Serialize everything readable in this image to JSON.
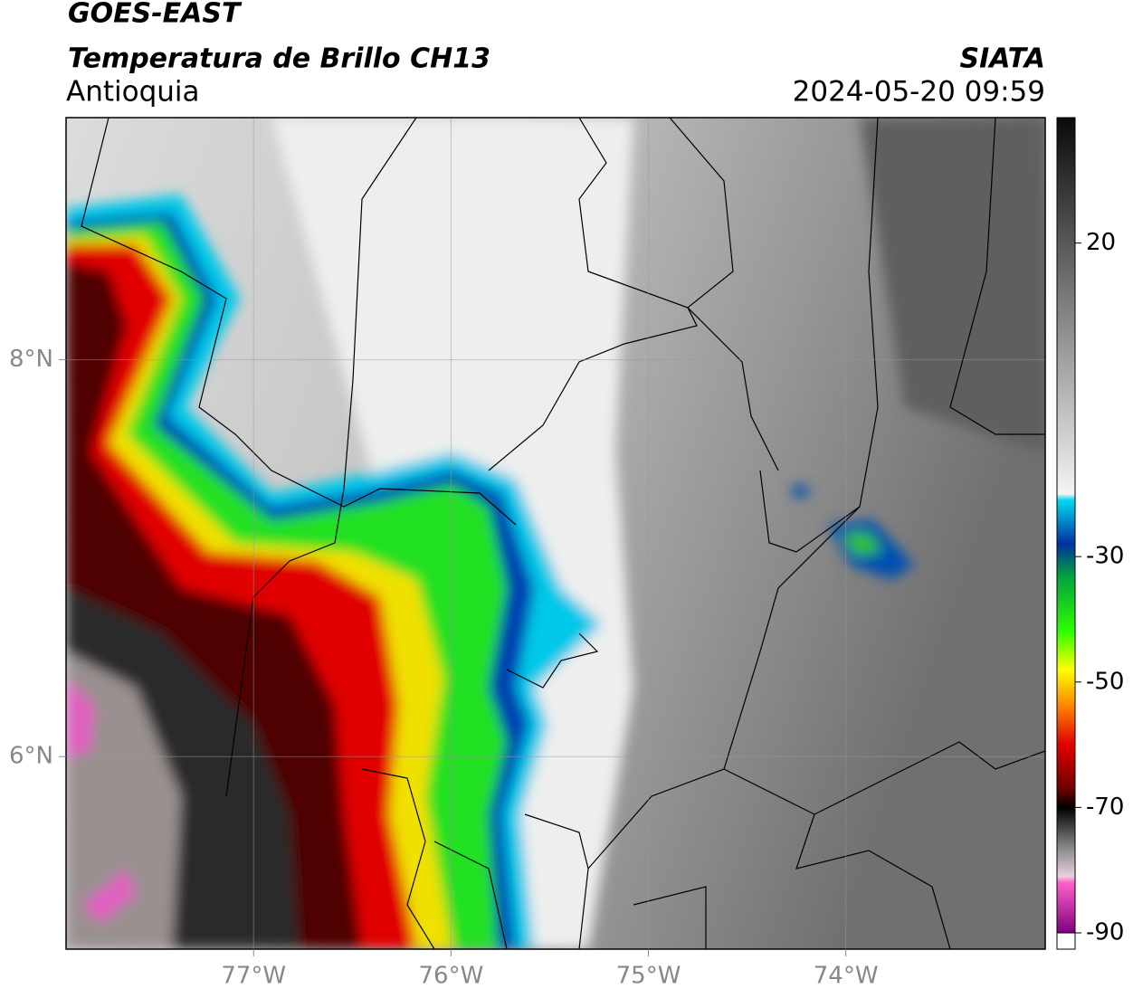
{
  "header": {
    "title": "GOES-EAST",
    "subtitle": "Temperatura de Brillo CH13",
    "region": "Antioquia",
    "source": "SIATA",
    "datetime": "2024-05-20 09:59"
  },
  "map": {
    "xlim": [
      -77.95,
      -72.99
    ],
    "ylim": [
      5.03,
      9.22
    ],
    "xticks": [
      {
        "value": -77,
        "label": "77°W"
      },
      {
        "value": -76,
        "label": "76°W"
      },
      {
        "value": -75,
        "label": "75°W"
      },
      {
        "value": -74,
        "label": "74°W"
      }
    ],
    "yticks": [
      {
        "value": 8,
        "label": "8°N"
      },
      {
        "value": 6,
        "label": "6°N"
      }
    ],
    "grid": true
  },
  "colorbar": {
    "lim": [
      -90,
      40
    ],
    "ticks": [
      20,
      -30,
      -50,
      -70,
      -90
    ],
    "colormap": [
      [
        40,
        "#0a0a0a"
      ],
      [
        -20,
        "#f4f4f4"
      ],
      [
        -21,
        "#00d8f0"
      ],
      [
        -28,
        "#0030a0"
      ],
      [
        -33,
        "#00a040"
      ],
      [
        -42,
        "#30ff00"
      ],
      [
        -48,
        "#ffff00"
      ],
      [
        -54,
        "#ff8000"
      ],
      [
        -60,
        "#e00000"
      ],
      [
        -67,
        "#700000"
      ],
      [
        -70,
        "#000000"
      ],
      [
        -76,
        "#808080"
      ],
      [
        -81,
        "#e8d0e0"
      ],
      [
        -82,
        "#ff60c8"
      ],
      [
        -90,
        "#800080"
      ]
    ]
  }
}
